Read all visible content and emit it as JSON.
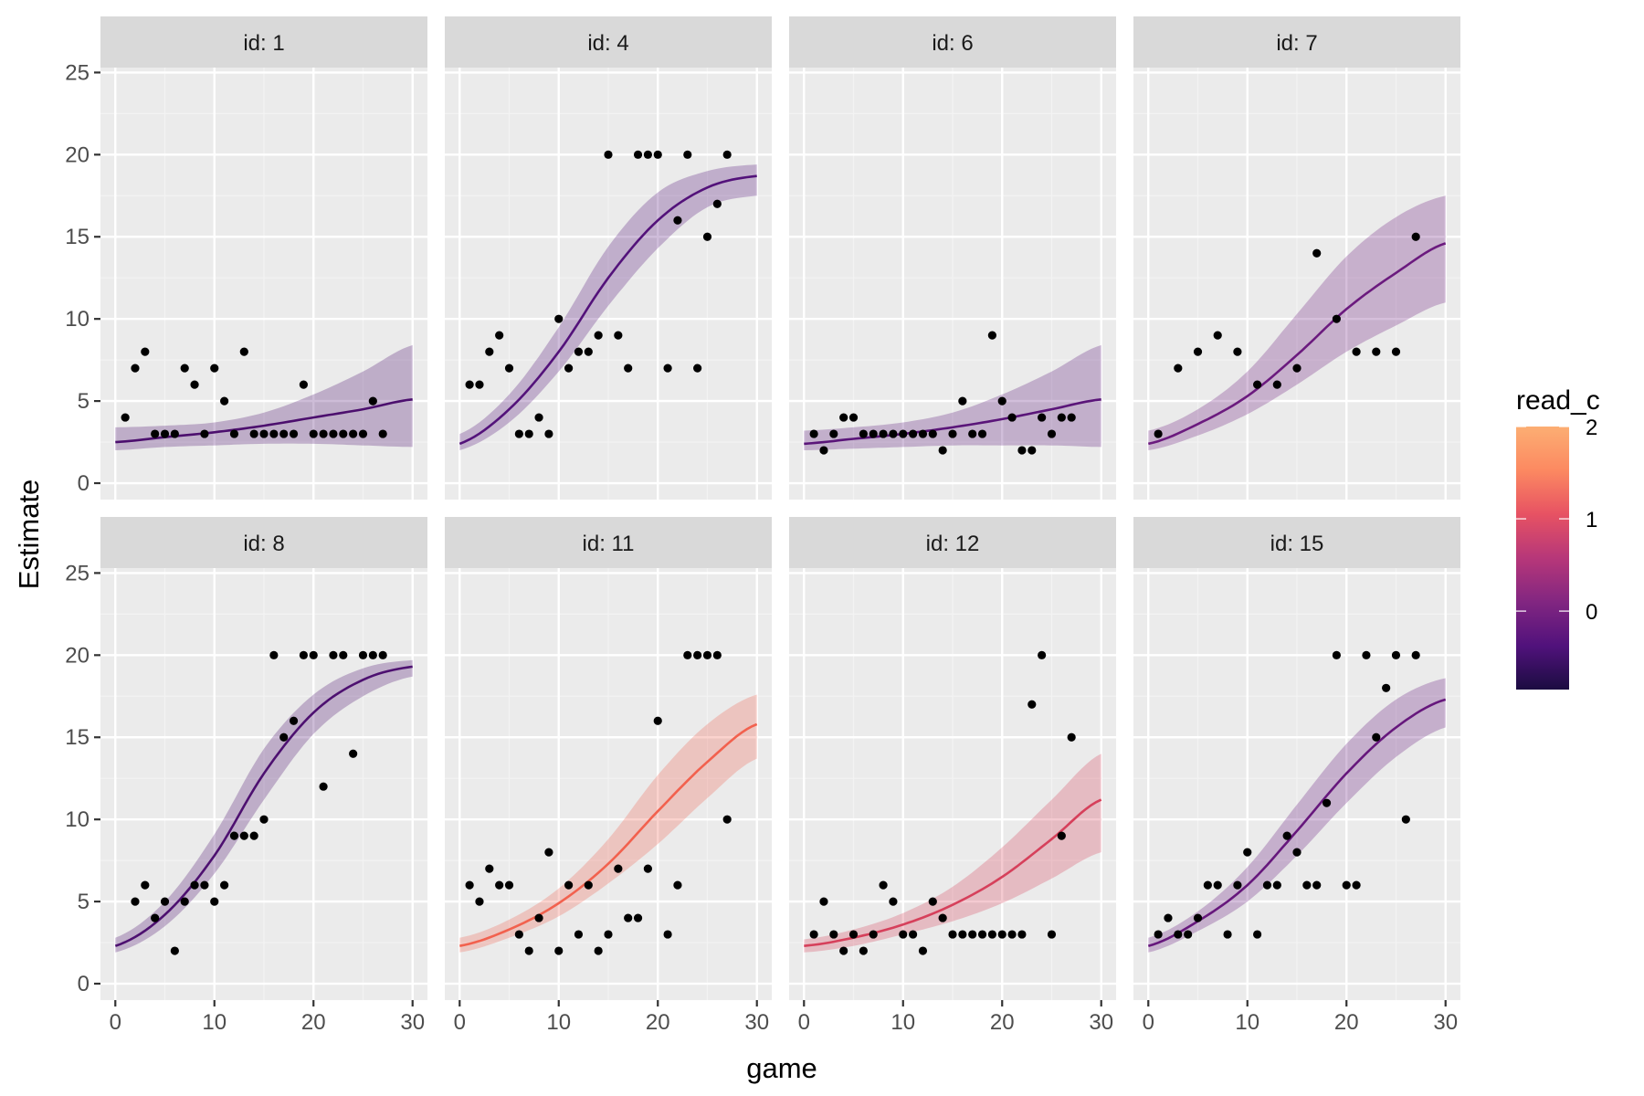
{
  "chart_data": {
    "type": "scatter",
    "subtype": "faceted scatter with fitted curves and ribbons",
    "title": "",
    "xlabel": "game",
    "ylabel": "Estimate",
    "xlim": [
      -1.5,
      31.5
    ],
    "ylim": [
      -1.0,
      25.3
    ],
    "x_ticks": [
      0,
      10,
      20,
      30
    ],
    "y_ticks": [
      0,
      5,
      10,
      15,
      20,
      25
    ],
    "grid": true,
    "facet_layout": {
      "rows": 2,
      "cols": 4
    },
    "legend": {
      "title": "read_c",
      "type": "colorbar",
      "position": "right",
      "range": [
        -0.85,
        2.0
      ],
      "ticks": [
        0,
        1,
        2
      ],
      "palette": [
        "#1b0c41",
        "#51127c",
        "#822681",
        "#b73779",
        "#e75263",
        "#fc8961",
        "#fcae73"
      ]
    },
    "curve_x": [
      0,
      5,
      10,
      15,
      20,
      25,
      30
    ],
    "panels": [
      {
        "label": "id: 1",
        "color": "#4c0f6e",
        "points": [
          [
            1,
            4
          ],
          [
            2,
            7
          ],
          [
            3,
            8
          ],
          [
            4,
            3
          ],
          [
            5,
            3
          ],
          [
            6,
            3
          ],
          [
            7,
            7
          ],
          [
            8,
            6
          ],
          [
            9,
            3
          ],
          [
            10,
            7
          ],
          [
            11,
            5
          ],
          [
            12,
            3
          ],
          [
            13,
            8
          ],
          [
            14,
            3
          ],
          [
            15,
            3
          ],
          [
            16,
            3
          ],
          [
            17,
            3
          ],
          [
            18,
            3
          ],
          [
            19,
            6
          ],
          [
            20,
            3
          ],
          [
            21,
            3
          ],
          [
            22,
            3
          ],
          [
            23,
            3
          ],
          [
            24,
            3
          ],
          [
            25,
            3
          ],
          [
            26,
            5
          ],
          [
            27,
            3
          ]
        ],
        "fit": [
          2.5,
          2.8,
          3.1,
          3.5,
          4.0,
          4.5,
          5.1
        ],
        "lower": [
          2.0,
          2.2,
          2.3,
          2.4,
          2.4,
          2.3,
          2.2
        ],
        "upper": [
          3.4,
          3.5,
          3.7,
          4.3,
          5.4,
          6.8,
          8.4
        ]
      },
      {
        "label": "id: 4",
        "color": "#53127a",
        "points": [
          [
            1,
            6
          ],
          [
            2,
            6
          ],
          [
            3,
            8
          ],
          [
            4,
            9
          ],
          [
            5,
            7
          ],
          [
            6,
            3
          ],
          [
            7,
            3
          ],
          [
            8,
            4
          ],
          [
            9,
            3
          ],
          [
            10,
            10
          ],
          [
            11,
            7
          ],
          [
            12,
            8
          ],
          [
            13,
            8
          ],
          [
            14,
            9
          ],
          [
            15,
            20
          ],
          [
            16,
            9
          ],
          [
            17,
            7
          ],
          [
            18,
            20
          ],
          [
            19,
            20
          ],
          [
            20,
            20
          ],
          [
            21,
            7
          ],
          [
            22,
            16
          ],
          [
            23,
            20
          ],
          [
            24,
            7
          ],
          [
            25,
            15
          ],
          [
            26,
            17
          ],
          [
            27,
            20
          ]
        ],
        "fit": [
          2.4,
          4.5,
          8.0,
          12.5,
          16.0,
          18.0,
          18.7
        ],
        "lower": [
          2.0,
          3.7,
          6.8,
          10.8,
          14.3,
          16.8,
          17.5
        ],
        "upper": [
          3.0,
          5.4,
          9.5,
          14.4,
          17.7,
          19.0,
          19.4
        ]
      },
      {
        "label": "id: 6",
        "color": "#5a1579",
        "points": [
          [
            1,
            3
          ],
          [
            2,
            2
          ],
          [
            3,
            3
          ],
          [
            4,
            4
          ],
          [
            5,
            4
          ],
          [
            6,
            3
          ],
          [
            7,
            3
          ],
          [
            8,
            3
          ],
          [
            9,
            3
          ],
          [
            10,
            3
          ],
          [
            11,
            3
          ],
          [
            12,
            3
          ],
          [
            13,
            3
          ],
          [
            14,
            2
          ],
          [
            15,
            3
          ],
          [
            16,
            5
          ],
          [
            17,
            3
          ],
          [
            18,
            3
          ],
          [
            19,
            9
          ],
          [
            20,
            5
          ],
          [
            21,
            4
          ],
          [
            22,
            2
          ],
          [
            23,
            2
          ],
          [
            24,
            4
          ],
          [
            25,
            3
          ],
          [
            26,
            4
          ],
          [
            27,
            4
          ]
        ],
        "fit": [
          2.4,
          2.7,
          3.0,
          3.4,
          3.9,
          4.5,
          5.1
        ],
        "lower": [
          2.0,
          2.1,
          2.2,
          2.3,
          2.3,
          2.3,
          2.2
        ],
        "upper": [
          3.2,
          3.4,
          3.7,
          4.3,
          5.4,
          6.8,
          8.4
        ]
      },
      {
        "label": "id: 7",
        "color": "#6b1a7e",
        "points": [
          [
            1,
            3
          ],
          [
            3,
            7
          ],
          [
            5,
            8
          ],
          [
            7,
            9
          ],
          [
            9,
            8
          ],
          [
            11,
            6
          ],
          [
            13,
            6
          ],
          [
            15,
            7
          ],
          [
            17,
            14
          ],
          [
            19,
            10
          ],
          [
            21,
            8
          ],
          [
            23,
            8
          ],
          [
            25,
            8
          ],
          [
            27,
            15
          ]
        ],
        "fit": [
          2.4,
          3.6,
          5.3,
          7.8,
          10.6,
          12.8,
          14.6
        ],
        "lower": [
          2.0,
          2.9,
          4.2,
          6.0,
          8.0,
          9.6,
          11.0
        ],
        "upper": [
          3.2,
          4.5,
          6.8,
          10.3,
          13.8,
          16.2,
          17.5
        ]
      },
      {
        "label": "id: 8",
        "color": "#4d1070",
        "points": [
          [
            2,
            5
          ],
          [
            3,
            6
          ],
          [
            4,
            4
          ],
          [
            5,
            5
          ],
          [
            6,
            2
          ],
          [
            7,
            5
          ],
          [
            8,
            6
          ],
          [
            9,
            6
          ],
          [
            10,
            5
          ],
          [
            11,
            6
          ],
          [
            12,
            9
          ],
          [
            13,
            9
          ],
          [
            14,
            9
          ],
          [
            15,
            10
          ],
          [
            16,
            20
          ],
          [
            17,
            15
          ],
          [
            18,
            16
          ],
          [
            19,
            20
          ],
          [
            20,
            20
          ],
          [
            21,
            12
          ],
          [
            22,
            20
          ],
          [
            23,
            20
          ],
          [
            24,
            14
          ],
          [
            25,
            20
          ],
          [
            26,
            20
          ],
          [
            27,
            20
          ]
        ],
        "fit": [
          2.3,
          4.2,
          7.8,
          12.8,
          16.5,
          18.5,
          19.3
        ],
        "lower": [
          1.9,
          3.5,
          6.7,
          11.2,
          15.2,
          17.5,
          18.7
        ],
        "upper": [
          2.8,
          5.0,
          9.1,
          14.3,
          17.6,
          19.2,
          19.7
        ]
      },
      {
        "label": "id: 11",
        "color": "#f2614e",
        "points": [
          [
            1,
            6
          ],
          [
            2,
            5
          ],
          [
            3,
            7
          ],
          [
            4,
            6
          ],
          [
            5,
            6
          ],
          [
            6,
            3
          ],
          [
            7,
            2
          ],
          [
            8,
            4
          ],
          [
            9,
            8
          ],
          [
            10,
            2
          ],
          [
            11,
            6
          ],
          [
            12,
            3
          ],
          [
            13,
            6
          ],
          [
            14,
            2
          ],
          [
            15,
            3
          ],
          [
            16,
            7
          ],
          [
            17,
            4
          ],
          [
            18,
            4
          ],
          [
            19,
            7
          ],
          [
            20,
            16
          ],
          [
            21,
            3
          ],
          [
            22,
            6
          ],
          [
            23,
            20
          ],
          [
            24,
            20
          ],
          [
            25,
            20
          ],
          [
            26,
            20
          ],
          [
            27,
            10
          ]
        ],
        "fit": [
          2.3,
          3.3,
          4.9,
          7.3,
          10.5,
          13.5,
          15.8
        ],
        "lower": [
          1.9,
          2.8,
          4.1,
          6.1,
          8.5,
          11.3,
          13.7
        ],
        "upper": [
          2.8,
          3.9,
          5.8,
          8.8,
          12.7,
          15.8,
          17.6
        ]
      },
      {
        "label": "id: 12",
        "color": "#d6405b",
        "points": [
          [
            1,
            3
          ],
          [
            2,
            5
          ],
          [
            3,
            3
          ],
          [
            4,
            2
          ],
          [
            5,
            3
          ],
          [
            6,
            2
          ],
          [
            7,
            3
          ],
          [
            8,
            6
          ],
          [
            9,
            5
          ],
          [
            10,
            3
          ],
          [
            11,
            3
          ],
          [
            12,
            2
          ],
          [
            13,
            5
          ],
          [
            14,
            4
          ],
          [
            15,
            3
          ],
          [
            16,
            3
          ],
          [
            17,
            3
          ],
          [
            18,
            3
          ],
          [
            19,
            3
          ],
          [
            20,
            3
          ],
          [
            21,
            3
          ],
          [
            22,
            3
          ],
          [
            23,
            17
          ],
          [
            24,
            20
          ],
          [
            25,
            3
          ],
          [
            26,
            9
          ],
          [
            27,
            15
          ]
        ],
        "fit": [
          2.3,
          2.8,
          3.6,
          4.8,
          6.5,
          8.8,
          11.2
        ],
        "lower": [
          1.9,
          2.3,
          3.0,
          3.8,
          4.9,
          6.4,
          8.0
        ],
        "upper": [
          2.7,
          3.3,
          4.3,
          5.9,
          8.3,
          11.2,
          14.0
        ]
      },
      {
        "label": "id: 15",
        "color": "#66177c",
        "points": [
          [
            1,
            3
          ],
          [
            2,
            4
          ],
          [
            3,
            3
          ],
          [
            4,
            3
          ],
          [
            5,
            4
          ],
          [
            6,
            6
          ],
          [
            7,
            6
          ],
          [
            8,
            3
          ],
          [
            9,
            6
          ],
          [
            10,
            8
          ],
          [
            11,
            3
          ],
          [
            12,
            6
          ],
          [
            13,
            6
          ],
          [
            14,
            9
          ],
          [
            15,
            8
          ],
          [
            16,
            6
          ],
          [
            17,
            6
          ],
          [
            18,
            11
          ],
          [
            19,
            20
          ],
          [
            20,
            6
          ],
          [
            21,
            6
          ],
          [
            22,
            20
          ],
          [
            23,
            15
          ],
          [
            24,
            18
          ],
          [
            25,
            20
          ],
          [
            26,
            10
          ],
          [
            27,
            20
          ]
        ],
        "fit": [
          2.3,
          3.8,
          6.0,
          9.3,
          12.8,
          15.6,
          17.3
        ],
        "lower": [
          1.9,
          3.2,
          5.0,
          7.8,
          11.0,
          13.8,
          15.6
        ],
        "upper": [
          2.8,
          4.4,
          7.1,
          10.9,
          14.6,
          17.3,
          18.6
        ]
      }
    ]
  }
}
